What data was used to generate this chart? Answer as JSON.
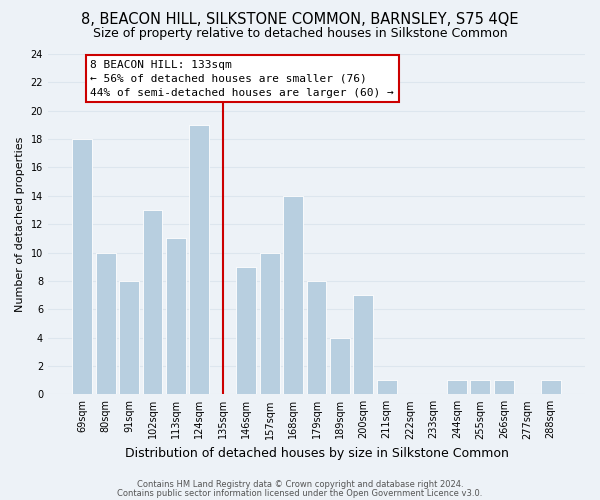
{
  "title": "8, BEACON HILL, SILKSTONE COMMON, BARNSLEY, S75 4QE",
  "subtitle": "Size of property relative to detached houses in Silkstone Common",
  "xlabel": "Distribution of detached houses by size in Silkstone Common",
  "ylabel": "Number of detached properties",
  "bin_labels": [
    "69sqm",
    "80sqm",
    "91sqm",
    "102sqm",
    "113sqm",
    "124sqm",
    "135sqm",
    "146sqm",
    "157sqm",
    "168sqm",
    "179sqm",
    "189sqm",
    "200sqm",
    "211sqm",
    "222sqm",
    "233sqm",
    "244sqm",
    "255sqm",
    "266sqm",
    "277sqm",
    "288sqm"
  ],
  "bar_heights": [
    18,
    10,
    8,
    13,
    11,
    19,
    0,
    9,
    10,
    14,
    8,
    4,
    7,
    1,
    0,
    0,
    1,
    1,
    1,
    0,
    1
  ],
  "highlight_index": 6,
  "bar_color": "#b8cfe0",
  "highlight_line_color": "#cc0000",
  "annotation_line1": "8 BEACON HILL: 133sqm",
  "annotation_line2": "← 56% of detached houses are smaller (76)",
  "annotation_line3": "44% of semi-detached houses are larger (60) →",
  "annotation_box_color": "#ffffff",
  "annotation_border_color": "#cc0000",
  "ylim": [
    0,
    24
  ],
  "yticks": [
    0,
    2,
    4,
    6,
    8,
    10,
    12,
    14,
    16,
    18,
    20,
    22,
    24
  ],
  "footer_line1": "Contains HM Land Registry data © Crown copyright and database right 2024.",
  "footer_line2": "Contains public sector information licensed under the Open Government Licence v3.0.",
  "title_fontsize": 10.5,
  "subtitle_fontsize": 9,
  "xlabel_fontsize": 9,
  "ylabel_fontsize": 8,
  "tick_fontsize": 7,
  "footer_fontsize": 6,
  "annotation_fontsize": 8,
  "grid_color": "#dde6ee",
  "bg_color": "#edf2f7",
  "fig_width": 6.0,
  "fig_height": 5.0
}
